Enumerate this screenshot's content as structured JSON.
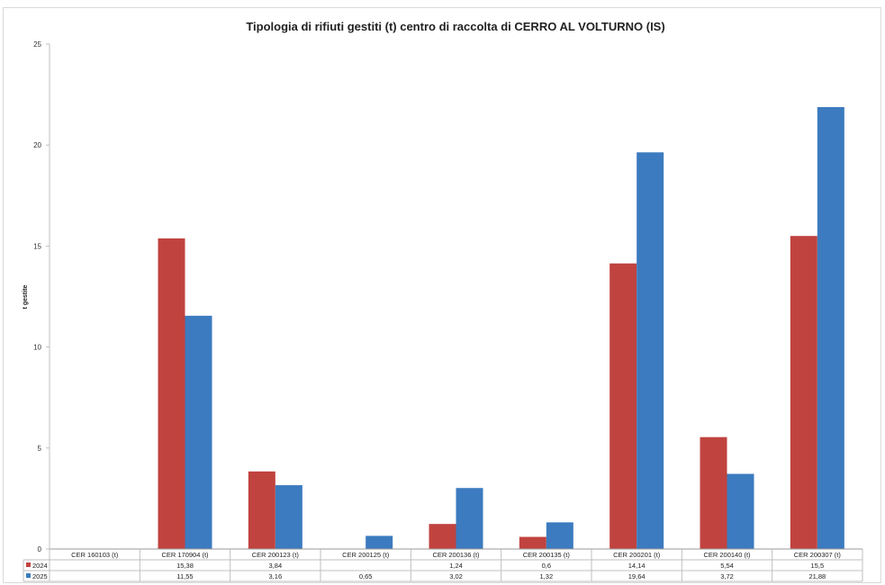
{
  "chart_data": {
    "type": "bar",
    "title": "Tipologia di rifiuti gestiti (t) centro di raccolta di CERRO AL VOLTURNO (IS)",
    "xlabel": "",
    "ylabel": "t gestite",
    "ylim": [
      0,
      25
    ],
    "yticks": [
      "0",
      "5",
      "10",
      "15",
      "20",
      "25"
    ],
    "grid": false,
    "legend": "data-table",
    "categories": [
      "CER 160103 (t)",
      "CER 170904 (t)",
      "CER 200123 (t)",
      "CER 200125 (t)",
      "CER 200136 (t)",
      "CER 200135 (t)",
      "CER 200201 (t)",
      "CER 200140 (t)",
      "CER 200307 (t)"
    ],
    "series": [
      {
        "name": "2024",
        "color": "#c0433f",
        "values": [
          null,
          15.38,
          3.84,
          null,
          1.24,
          0.6,
          14.14,
          5.54,
          15.5
        ],
        "labels": [
          "",
          "15,38",
          "3,84",
          "",
          "1,24",
          "0,6",
          "14,14",
          "5,54",
          "15,5"
        ]
      },
      {
        "name": "2025",
        "color": "#3c7bbf",
        "values": [
          null,
          11.55,
          3.16,
          0.65,
          3.02,
          1.32,
          19.64,
          3.72,
          21.88
        ],
        "labels": [
          "",
          "11,55",
          "3,16",
          "0,65",
          "3,02",
          "1,32",
          "19,64",
          "3,72",
          "21,88"
        ]
      }
    ]
  }
}
